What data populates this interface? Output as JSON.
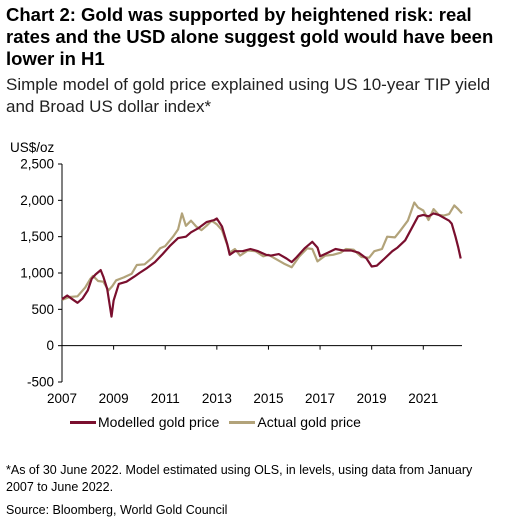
{
  "header": {
    "title": "Chart 2: Gold was supported by heightened risk: real rates and the USD alone suggest gold would have been lower in H1",
    "subtitle": "Simple model of gold price explained using US 10-year TIP yield and Broad US dollar index*"
  },
  "footer": {
    "footnote": "*As of 30 June 2022. Model estimated using OLS, in levels, using data from January 2007 to June 2022.",
    "source": "Source: Bloomberg, World Gold Council"
  },
  "colors": {
    "modelled": "#7a0f2e",
    "actual": "#b2a37a",
    "axis": "#000000"
  },
  "chart_data": {
    "type": "line",
    "ylabel": "US$/oz",
    "ylim": [
      -500,
      2500
    ],
    "yticks": [
      2500,
      2000,
      1500,
      1000,
      500,
      0,
      -500
    ],
    "ytick_labels": [
      "2,500",
      "2,000",
      "1,500",
      "1,000",
      "500",
      "0",
      "-500"
    ],
    "xlim": [
      2007.0,
      2022.5
    ],
    "xticks": [
      2007,
      2009,
      2011,
      2013,
      2015,
      2017,
      2019,
      2021
    ],
    "xtick_labels": [
      "2007",
      "2009",
      "2011",
      "2013",
      "2015",
      "2017",
      "2019",
      "2021"
    ],
    "grid": false,
    "legend_position": "bottom",
    "series": [
      {
        "name": "Modelled gold price",
        "color": "#7a0f2e",
        "points": [
          [
            2007.0,
            640
          ],
          [
            2007.2,
            690
          ],
          [
            2007.4,
            640
          ],
          [
            2007.6,
            590
          ],
          [
            2007.8,
            650
          ],
          [
            2008.0,
            760
          ],
          [
            2008.15,
            920
          ],
          [
            2008.3,
            980
          ],
          [
            2008.5,
            1040
          ],
          [
            2008.6,
            950
          ],
          [
            2008.75,
            780
          ],
          [
            2008.85,
            560
          ],
          [
            2008.92,
            400
          ],
          [
            2009.0,
            620
          ],
          [
            2009.2,
            850
          ],
          [
            2009.5,
            880
          ],
          [
            2009.8,
            950
          ],
          [
            2010.0,
            1000
          ],
          [
            2010.3,
            1070
          ],
          [
            2010.6,
            1150
          ],
          [
            2010.9,
            1260
          ],
          [
            2011.2,
            1380
          ],
          [
            2011.5,
            1480
          ],
          [
            2011.8,
            1500
          ],
          [
            2012.0,
            1560
          ],
          [
            2012.3,
            1620
          ],
          [
            2012.6,
            1700
          ],
          [
            2012.9,
            1730
          ],
          [
            2013.0,
            1750
          ],
          [
            2013.2,
            1640
          ],
          [
            2013.4,
            1400
          ],
          [
            2013.5,
            1250
          ],
          [
            2013.7,
            1300
          ],
          [
            2014.0,
            1300
          ],
          [
            2014.3,
            1330
          ],
          [
            2014.6,
            1300
          ],
          [
            2014.9,
            1250
          ],
          [
            2015.1,
            1240
          ],
          [
            2015.4,
            1260
          ],
          [
            2015.7,
            1200
          ],
          [
            2015.9,
            1150
          ],
          [
            2016.1,
            1220
          ],
          [
            2016.4,
            1340
          ],
          [
            2016.7,
            1430
          ],
          [
            2016.9,
            1350
          ],
          [
            2017.0,
            1230
          ],
          [
            2017.3,
            1280
          ],
          [
            2017.6,
            1330
          ],
          [
            2017.9,
            1310
          ],
          [
            2018.2,
            1310
          ],
          [
            2018.5,
            1280
          ],
          [
            2018.8,
            1200
          ],
          [
            2019.0,
            1090
          ],
          [
            2019.2,
            1100
          ],
          [
            2019.5,
            1200
          ],
          [
            2019.8,
            1300
          ],
          [
            2020.0,
            1350
          ],
          [
            2020.3,
            1450
          ],
          [
            2020.6,
            1650
          ],
          [
            2020.8,
            1780
          ],
          [
            2021.0,
            1800
          ],
          [
            2021.2,
            1780
          ],
          [
            2021.4,
            1820
          ],
          [
            2021.6,
            1800
          ],
          [
            2021.8,
            1760
          ],
          [
            2022.0,
            1720
          ],
          [
            2022.1,
            1680
          ],
          [
            2022.25,
            1500
          ],
          [
            2022.35,
            1360
          ],
          [
            2022.45,
            1200
          ]
        ]
      },
      {
        "name": "Actual gold price",
        "color": "#b2a37a",
        "points": [
          [
            2007.0,
            630
          ],
          [
            2007.3,
            670
          ],
          [
            2007.6,
            680
          ],
          [
            2007.9,
            800
          ],
          [
            2008.1,
            920
          ],
          [
            2008.2,
            960
          ],
          [
            2008.4,
            890
          ],
          [
            2008.6,
            880
          ],
          [
            2008.8,
            760
          ],
          [
            2008.95,
            820
          ],
          [
            2009.1,
            900
          ],
          [
            2009.4,
            940
          ],
          [
            2009.7,
            990
          ],
          [
            2009.9,
            1110
          ],
          [
            2010.2,
            1120
          ],
          [
            2010.5,
            1210
          ],
          [
            2010.8,
            1340
          ],
          [
            2011.0,
            1370
          ],
          [
            2011.3,
            1500
          ],
          [
            2011.5,
            1600
          ],
          [
            2011.65,
            1820
          ],
          [
            2011.8,
            1650
          ],
          [
            2012.0,
            1720
          ],
          [
            2012.2,
            1640
          ],
          [
            2012.4,
            1590
          ],
          [
            2012.6,
            1650
          ],
          [
            2012.8,
            1720
          ],
          [
            2013.0,
            1670
          ],
          [
            2013.2,
            1590
          ],
          [
            2013.4,
            1390
          ],
          [
            2013.5,
            1280
          ],
          [
            2013.7,
            1330
          ],
          [
            2013.9,
            1240
          ],
          [
            2014.2,
            1310
          ],
          [
            2014.5,
            1300
          ],
          [
            2014.8,
            1230
          ],
          [
            2015.0,
            1250
          ],
          [
            2015.3,
            1190
          ],
          [
            2015.6,
            1130
          ],
          [
            2015.9,
            1080
          ],
          [
            2016.2,
            1230
          ],
          [
            2016.5,
            1340
          ],
          [
            2016.7,
            1330
          ],
          [
            2016.9,
            1160
          ],
          [
            2017.2,
            1240
          ],
          [
            2017.5,
            1250
          ],
          [
            2017.8,
            1280
          ],
          [
            2018.0,
            1330
          ],
          [
            2018.3,
            1320
          ],
          [
            2018.6,
            1220
          ],
          [
            2018.9,
            1210
          ],
          [
            2019.1,
            1300
          ],
          [
            2019.4,
            1330
          ],
          [
            2019.6,
            1500
          ],
          [
            2019.9,
            1490
          ],
          [
            2020.1,
            1580
          ],
          [
            2020.4,
            1720
          ],
          [
            2020.65,
            1970
          ],
          [
            2020.8,
            1900
          ],
          [
            2021.0,
            1860
          ],
          [
            2021.2,
            1730
          ],
          [
            2021.4,
            1880
          ],
          [
            2021.6,
            1800
          ],
          [
            2021.8,
            1790
          ],
          [
            2022.0,
            1810
          ],
          [
            2022.2,
            1930
          ],
          [
            2022.35,
            1880
          ],
          [
            2022.5,
            1820
          ]
        ]
      }
    ]
  }
}
